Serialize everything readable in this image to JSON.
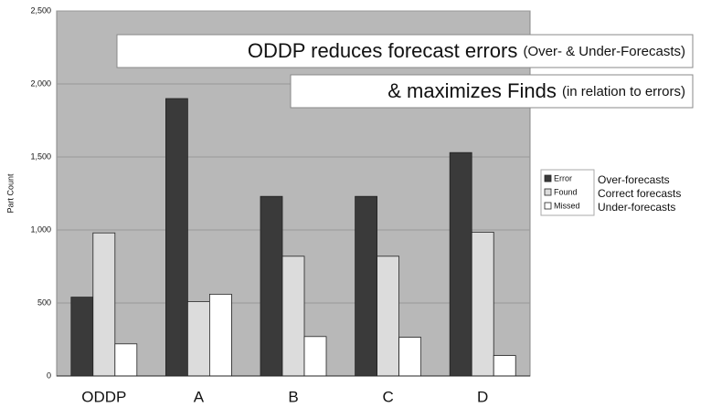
{
  "chart_data": {
    "type": "bar",
    "ylabel": "Part Count",
    "categories": [
      "ODDP",
      "A",
      "B",
      "C",
      "D"
    ],
    "series": [
      {
        "name": "Error",
        "color": "#3a3a3a",
        "values": [
          540,
          1900,
          1230,
          1230,
          1530
        ]
      },
      {
        "name": "Found",
        "color": "#dcdcdc",
        "values": [
          980,
          510,
          820,
          820,
          985
        ]
      },
      {
        "name": "Missed",
        "color": "#ffffff",
        "values": [
          220,
          560,
          270,
          265,
          140
        ]
      }
    ],
    "legend_notes": [
      "Over-forecasts",
      "Correct forecasts",
      "Under-forecasts"
    ],
    "annotations": [
      {
        "main": "ODDP reduces forecast errors",
        "sub": "(Over- & Under-Forecasts)"
      },
      {
        "main": "& maximizes Finds",
        "sub": "(in relation to errors)"
      }
    ],
    "ylim": [
      0,
      2500
    ],
    "yticks": [
      0,
      500,
      {
        "value": 1000,
        "label": "1,000"
      },
      {
        "value": 1500,
        "label": "1,500"
      },
      {
        "value": 2000,
        "label": "2,000"
      },
      {
        "value": 2500,
        "label": "2,500"
      }
    ],
    "grid": true,
    "plot_background": "#b8b8b8"
  }
}
